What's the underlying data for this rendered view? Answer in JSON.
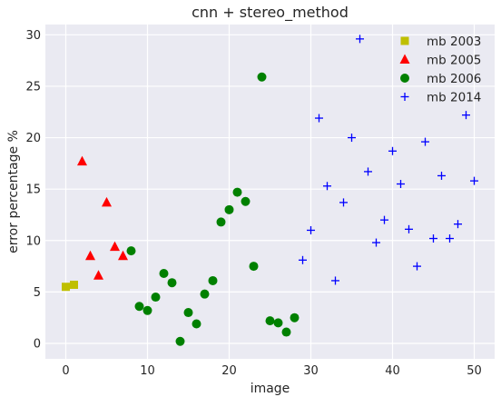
{
  "chart_data": {
    "type": "scatter",
    "title": "cnn + stereo_method",
    "xlabel": "image",
    "ylabel": "error percentage %",
    "xlim": [
      -2.5,
      52.5
    ],
    "ylim": [
      -1.5,
      31.0
    ],
    "xticks": [
      0,
      10,
      20,
      30,
      40,
      50
    ],
    "yticks": [
      0,
      5,
      10,
      15,
      20,
      25,
      30
    ],
    "grid": true,
    "background": "#eaeaf2",
    "legend_position": "top-right",
    "series": [
      {
        "name": "mb 2003",
        "marker": "square",
        "color": "#bfbf00",
        "x": [
          0,
          1
        ],
        "y": [
          5.5,
          5.7
        ]
      },
      {
        "name": "mb 2005",
        "marker": "triangle",
        "color": "#ff0000",
        "x": [
          2,
          3,
          4,
          5,
          6,
          7
        ],
        "y": [
          17.7,
          8.5,
          6.6,
          13.7,
          9.4,
          8.5
        ]
      },
      {
        "name": "mb 2006",
        "marker": "circle",
        "color": "#008000",
        "x": [
          8,
          9,
          10,
          11,
          12,
          13,
          14,
          15,
          16,
          17,
          18,
          19,
          20,
          21,
          22,
          23,
          24,
          25,
          26,
          27,
          28
        ],
        "y": [
          9.0,
          3.6,
          3.2,
          4.5,
          6.8,
          5.9,
          0.2,
          3.0,
          1.9,
          4.8,
          6.1,
          11.8,
          13.0,
          14.7,
          13.8,
          7.5,
          25.9,
          2.2,
          2.0,
          1.1,
          2.5
        ]
      },
      {
        "name": "mb 2014",
        "marker": "plus",
        "color": "#0000ff",
        "x": [
          29,
          30,
          31,
          32,
          33,
          34,
          35,
          36,
          37,
          38,
          39,
          40,
          41,
          42,
          43,
          44,
          45,
          46,
          47,
          48,
          49,
          50
        ],
        "y": [
          8.1,
          11.0,
          21.9,
          15.3,
          6.1,
          13.7,
          20.0,
          29.6,
          16.7,
          9.8,
          12.0,
          18.7,
          15.5,
          11.1,
          7.5,
          19.6,
          10.2,
          16.3,
          10.2,
          11.6,
          22.2,
          15.8
        ]
      }
    ]
  }
}
